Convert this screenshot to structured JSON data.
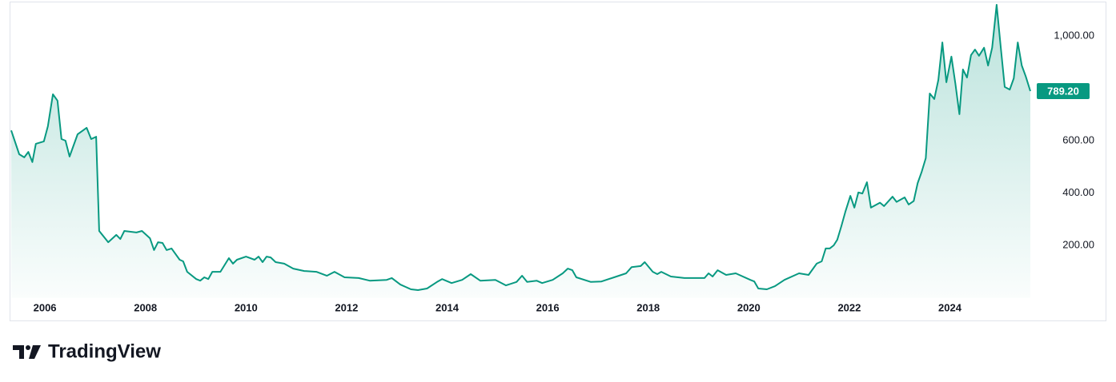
{
  "chart_data": {
    "type": "area",
    "x": [
      2005.33,
      2005.49,
      2005.59,
      2005.67,
      2005.75,
      2005.82,
      2005.98,
      2006.06,
      2006.16,
      2006.25,
      2006.33,
      2006.41,
      2006.49,
      2006.65,
      2006.83,
      2006.92,
      2007.02,
      2007.08,
      2007.26,
      2007.42,
      2007.5,
      2007.58,
      2007.82,
      2007.93,
      2008.09,
      2008.17,
      2008.25,
      2008.34,
      2008.42,
      2008.52,
      2008.68,
      2008.75,
      2008.83,
      2009.01,
      2009.09,
      2009.17,
      2009.25,
      2009.33,
      2009.49,
      2009.66,
      2009.74,
      2009.82,
      2010.0,
      2010.17,
      2010.25,
      2010.33,
      2010.41,
      2010.49,
      2010.59,
      2010.76,
      2010.94,
      2011.16,
      2011.4,
      2011.61,
      2011.76,
      2011.96,
      2012.24,
      2012.46,
      2012.8,
      2012.9,
      2013.07,
      2013.28,
      2013.42,
      2013.6,
      2013.8,
      2013.9,
      2014.09,
      2014.3,
      2014.47,
      2014.66,
      2014.96,
      2015.17,
      2015.38,
      2015.49,
      2015.59,
      2015.78,
      2015.89,
      2016.1,
      2016.3,
      2016.4,
      2016.49,
      2016.57,
      2016.86,
      2017.07,
      2017.37,
      2017.56,
      2017.67,
      2017.85,
      2017.93,
      2018.09,
      2018.18,
      2018.26,
      2018.45,
      2018.72,
      2019.12,
      2019.2,
      2019.28,
      2019.38,
      2019.55,
      2019.74,
      2020.03,
      2020.11,
      2020.19,
      2020.36,
      2020.52,
      2020.71,
      2021.0,
      2021.19,
      2021.35,
      2021.45,
      2021.53,
      2021.61,
      2021.69,
      2021.76,
      2021.84,
      2021.92,
      2022.02,
      2022.1,
      2022.18,
      2022.26,
      2022.35,
      2022.43,
      2022.61,
      2022.69,
      2022.86,
      2022.94,
      2023.1,
      2023.18,
      2023.28,
      2023.36,
      2023.44,
      2023.52,
      2023.6,
      2023.69,
      2023.77,
      2023.85,
      2023.93,
      2024.03,
      2024.11,
      2024.19,
      2024.26,
      2024.34,
      2024.42,
      2024.5,
      2024.58,
      2024.68,
      2024.76,
      2024.84,
      2024.93,
      2025.01,
      2025.09,
      2025.19,
      2025.27,
      2025.35,
      2025.43,
      2025.51,
      2025.6
    ],
    "series": [
      {
        "color": "#089981",
        "values": [
          639,
          548,
          536,
          557,
          518,
          588,
          597,
          655,
          777,
          753,
          606,
          600,
          539,
          624,
          649,
          606,
          615,
          255,
          212,
          240,
          224,
          255,
          249,
          255,
          227,
          182,
          212,
          209,
          182,
          188,
          145,
          139,
          99,
          71,
          65,
          78,
          71,
          99,
          99,
          151,
          130,
          145,
          157,
          145,
          157,
          136,
          157,
          154,
          136,
          130,
          111,
          102,
          99,
          84,
          99,
          78,
          75,
          65,
          68,
          75,
          50,
          32,
          29,
          35,
          60,
          71,
          56,
          68,
          90,
          65,
          68,
          47,
          60,
          84,
          60,
          65,
          56,
          68,
          93,
          111,
          105,
          78,
          60,
          62,
          81,
          93,
          117,
          121,
          136,
          99,
          90,
          99,
          81,
          75,
          75,
          93,
          81,
          105,
          87,
          93,
          68,
          62,
          35,
          32,
          44,
          68,
          93,
          87,
          130,
          139,
          188,
          188,
          200,
          221,
          273,
          328,
          389,
          344,
          402,
          398,
          441,
          344,
          363,
          350,
          386,
          366,
          383,
          356,
          369,
          438,
          481,
          533,
          780,
          759,
          832,
          975,
          823,
          921,
          817,
          701,
          872,
          841,
          927,
          948,
          924,
          955,
          887,
          955,
          1119,
          961,
          805,
          795,
          838,
          975,
          887,
          845,
          789.2
        ]
      }
    ],
    "current_price": {
      "value": 789.2,
      "label": "789.20"
    },
    "xlim": [
      2005.33,
      2025.6
    ],
    "xticks": [
      2006,
      2008,
      2010,
      2012,
      2014,
      2016,
      2018,
      2020,
      2022,
      2024
    ],
    "ylim": [
      0,
      1125
    ],
    "yticks": [
      {
        "value": 200,
        "label": "200.00"
      },
      {
        "value": 400,
        "label": "400.00"
      },
      {
        "value": 600,
        "label": "600.00"
      },
      {
        "value": 1000,
        "label": "1,000.00"
      }
    ],
    "grid": false
  },
  "brand": "TradingView"
}
